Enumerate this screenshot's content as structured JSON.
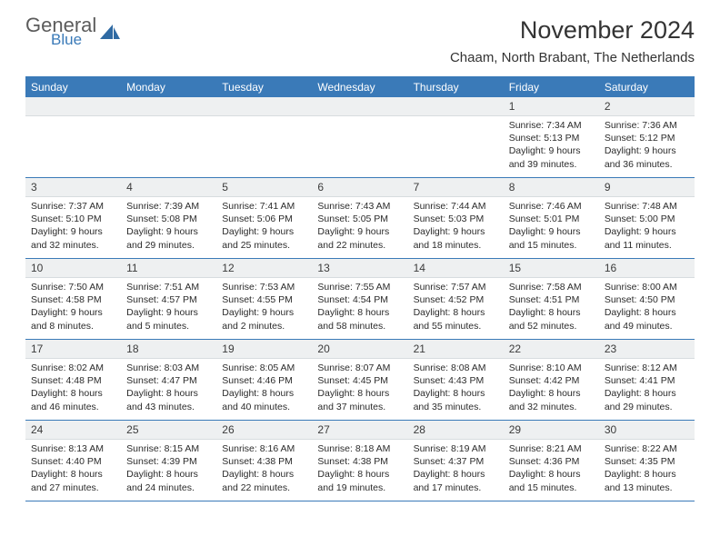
{
  "logo": {
    "general": "General",
    "blue": "Blue"
  },
  "title": "November 2024",
  "location": "Chaam, North Brabant, The Netherlands",
  "colors": {
    "brand": "#3a7ab8",
    "header_bg": "#3a7ab8",
    "header_text": "#ffffff",
    "daynum_bg": "#eef0f1",
    "border": "#3a7ab8",
    "text": "#2b2b2b",
    "fontsize_body": 10.5,
    "fontsize_title": 27
  },
  "dayNames": [
    "Sunday",
    "Monday",
    "Tuesday",
    "Wednesday",
    "Thursday",
    "Friday",
    "Saturday"
  ],
  "weeks": [
    [
      null,
      null,
      null,
      null,
      null,
      {
        "num": "1",
        "sunrise": "7:34 AM",
        "sunset": "5:13 PM",
        "daylight1": "Daylight: 9 hours",
        "daylight2": "and 39 minutes."
      },
      {
        "num": "2",
        "sunrise": "7:36 AM",
        "sunset": "5:12 PM",
        "daylight1": "Daylight: 9 hours",
        "daylight2": "and 36 minutes."
      }
    ],
    [
      {
        "num": "3",
        "sunrise": "7:37 AM",
        "sunset": "5:10 PM",
        "daylight1": "Daylight: 9 hours",
        "daylight2": "and 32 minutes."
      },
      {
        "num": "4",
        "sunrise": "7:39 AM",
        "sunset": "5:08 PM",
        "daylight1": "Daylight: 9 hours",
        "daylight2": "and 29 minutes."
      },
      {
        "num": "5",
        "sunrise": "7:41 AM",
        "sunset": "5:06 PM",
        "daylight1": "Daylight: 9 hours",
        "daylight2": "and 25 minutes."
      },
      {
        "num": "6",
        "sunrise": "7:43 AM",
        "sunset": "5:05 PM",
        "daylight1": "Daylight: 9 hours",
        "daylight2": "and 22 minutes."
      },
      {
        "num": "7",
        "sunrise": "7:44 AM",
        "sunset": "5:03 PM",
        "daylight1": "Daylight: 9 hours",
        "daylight2": "and 18 minutes."
      },
      {
        "num": "8",
        "sunrise": "7:46 AM",
        "sunset": "5:01 PM",
        "daylight1": "Daylight: 9 hours",
        "daylight2": "and 15 minutes."
      },
      {
        "num": "9",
        "sunrise": "7:48 AM",
        "sunset": "5:00 PM",
        "daylight1": "Daylight: 9 hours",
        "daylight2": "and 11 minutes."
      }
    ],
    [
      {
        "num": "10",
        "sunrise": "7:50 AM",
        "sunset": "4:58 PM",
        "daylight1": "Daylight: 9 hours",
        "daylight2": "and 8 minutes."
      },
      {
        "num": "11",
        "sunrise": "7:51 AM",
        "sunset": "4:57 PM",
        "daylight1": "Daylight: 9 hours",
        "daylight2": "and 5 minutes."
      },
      {
        "num": "12",
        "sunrise": "7:53 AM",
        "sunset": "4:55 PM",
        "daylight1": "Daylight: 9 hours",
        "daylight2": "and 2 minutes."
      },
      {
        "num": "13",
        "sunrise": "7:55 AM",
        "sunset": "4:54 PM",
        "daylight1": "Daylight: 8 hours",
        "daylight2": "and 58 minutes."
      },
      {
        "num": "14",
        "sunrise": "7:57 AM",
        "sunset": "4:52 PM",
        "daylight1": "Daylight: 8 hours",
        "daylight2": "and 55 minutes."
      },
      {
        "num": "15",
        "sunrise": "7:58 AM",
        "sunset": "4:51 PM",
        "daylight1": "Daylight: 8 hours",
        "daylight2": "and 52 minutes."
      },
      {
        "num": "16",
        "sunrise": "8:00 AM",
        "sunset": "4:50 PM",
        "daylight1": "Daylight: 8 hours",
        "daylight2": "and 49 minutes."
      }
    ],
    [
      {
        "num": "17",
        "sunrise": "8:02 AM",
        "sunset": "4:48 PM",
        "daylight1": "Daylight: 8 hours",
        "daylight2": "and 46 minutes."
      },
      {
        "num": "18",
        "sunrise": "8:03 AM",
        "sunset": "4:47 PM",
        "daylight1": "Daylight: 8 hours",
        "daylight2": "and 43 minutes."
      },
      {
        "num": "19",
        "sunrise": "8:05 AM",
        "sunset": "4:46 PM",
        "daylight1": "Daylight: 8 hours",
        "daylight2": "and 40 minutes."
      },
      {
        "num": "20",
        "sunrise": "8:07 AM",
        "sunset": "4:45 PM",
        "daylight1": "Daylight: 8 hours",
        "daylight2": "and 37 minutes."
      },
      {
        "num": "21",
        "sunrise": "8:08 AM",
        "sunset": "4:43 PM",
        "daylight1": "Daylight: 8 hours",
        "daylight2": "and 35 minutes."
      },
      {
        "num": "22",
        "sunrise": "8:10 AM",
        "sunset": "4:42 PM",
        "daylight1": "Daylight: 8 hours",
        "daylight2": "and 32 minutes."
      },
      {
        "num": "23",
        "sunrise": "8:12 AM",
        "sunset": "4:41 PM",
        "daylight1": "Daylight: 8 hours",
        "daylight2": "and 29 minutes."
      }
    ],
    [
      {
        "num": "24",
        "sunrise": "8:13 AM",
        "sunset": "4:40 PM",
        "daylight1": "Daylight: 8 hours",
        "daylight2": "and 27 minutes."
      },
      {
        "num": "25",
        "sunrise": "8:15 AM",
        "sunset": "4:39 PM",
        "daylight1": "Daylight: 8 hours",
        "daylight2": "and 24 minutes."
      },
      {
        "num": "26",
        "sunrise": "8:16 AM",
        "sunset": "4:38 PM",
        "daylight1": "Daylight: 8 hours",
        "daylight2": "and 22 minutes."
      },
      {
        "num": "27",
        "sunrise": "8:18 AM",
        "sunset": "4:38 PM",
        "daylight1": "Daylight: 8 hours",
        "daylight2": "and 19 minutes."
      },
      {
        "num": "28",
        "sunrise": "8:19 AM",
        "sunset": "4:37 PM",
        "daylight1": "Daylight: 8 hours",
        "daylight2": "and 17 minutes."
      },
      {
        "num": "29",
        "sunrise": "8:21 AM",
        "sunset": "4:36 PM",
        "daylight1": "Daylight: 8 hours",
        "daylight2": "and 15 minutes."
      },
      {
        "num": "30",
        "sunrise": "8:22 AM",
        "sunset": "4:35 PM",
        "daylight1": "Daylight: 8 hours",
        "daylight2": "and 13 minutes."
      }
    ]
  ]
}
